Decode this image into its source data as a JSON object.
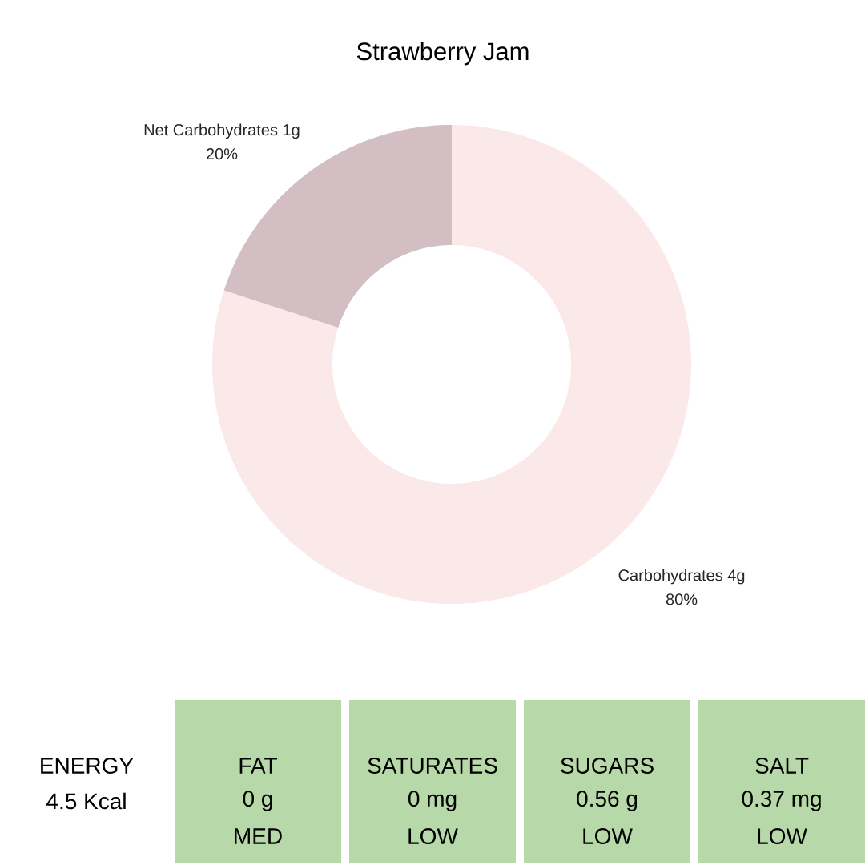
{
  "chart_data": [
    {
      "type": "donut",
      "title": "Strawberry Jam",
      "categories": [
        "Carbohydrates 4g",
        "Net Carbohydrates 1g"
      ],
      "values": [
        80,
        20
      ],
      "colors": [
        "#fbe8e8",
        "#d3bfc3"
      ],
      "value_labels": [
        "80%",
        "20%"
      ]
    },
    {
      "type": "other",
      "annotations": [
        "ENERGY",
        "4.5 Kcal",
        "FAT",
        "0 g",
        "MED",
        "SATURATES",
        "0 mg",
        "LOW",
        "SUGARS",
        "0.56 g",
        "LOW",
        "SALT",
        "0.37 mg",
        "LOW"
      ],
      "colors": [
        null,
        "#b7d8a8",
        "#b7d8a8",
        "#b7d8a8",
        "#b7d8a8"
      ]
    }
  ]
}
